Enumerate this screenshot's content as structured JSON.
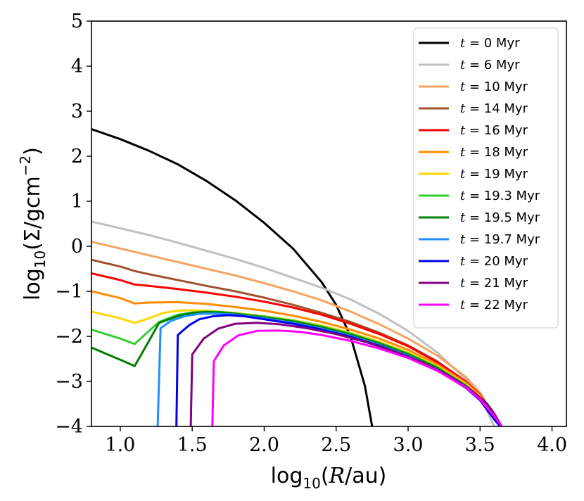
{
  "chart_data": {
    "type": "line",
    "xlabel": "log10(R/au)",
    "ylabel": "log10(Σ/gcm−2)",
    "xlabel_parts": {
      "prefix": "log",
      "sub": "10",
      "open": "(",
      "var": "R",
      "rest": "/au)"
    },
    "ylabel_parts": {
      "prefix": "log",
      "sub": "10",
      "mid": "(Σ/gcm",
      "sup": "−2",
      "close": ")"
    },
    "xlim": [
      0.8,
      4.1
    ],
    "ylim": [
      -4,
      5
    ],
    "xticks": [
      1.0,
      1.5,
      2.0,
      2.5,
      3.0,
      3.5,
      4.0
    ],
    "xtick_labels": [
      "1.0",
      "1.5",
      "2.0",
      "2.5",
      "3.0",
      "3.5",
      "4.0"
    ],
    "yticks": [
      -4,
      -3,
      -2,
      -1,
      0,
      1,
      2,
      3,
      4,
      5
    ],
    "ytick_labels": [
      "−4",
      "−3",
      "−2",
      "−1",
      "0",
      "1",
      "2",
      "3",
      "4",
      "5"
    ],
    "legend_position": "top-right",
    "series": [
      {
        "name": "t = 0 Myr",
        "t_symbol": "t",
        "t_rest": " = 0 Myr",
        "color": "#000000",
        "points": [
          [
            0.8,
            2.6
          ],
          [
            1.0,
            2.38
          ],
          [
            1.2,
            2.12
          ],
          [
            1.4,
            1.82
          ],
          [
            1.6,
            1.45
          ],
          [
            1.8,
            1.02
          ],
          [
            2.0,
            0.52
          ],
          [
            2.2,
            -0.05
          ],
          [
            2.4,
            -0.8
          ],
          [
            2.5,
            -1.3
          ],
          [
            2.6,
            -2.0
          ],
          [
            2.7,
            -3.1
          ],
          [
            2.75,
            -4.0
          ]
        ]
      },
      {
        "name": "t = 6 Myr",
        "t_symbol": "t",
        "t_rest": " = 6 Myr",
        "color": "#c0c0c0",
        "points": [
          [
            0.8,
            0.55
          ],
          [
            1.0,
            0.4
          ],
          [
            1.2,
            0.25
          ],
          [
            1.4,
            0.08
          ],
          [
            1.6,
            -0.1
          ],
          [
            1.8,
            -0.28
          ],
          [
            2.0,
            -0.48
          ],
          [
            2.2,
            -0.7
          ],
          [
            2.4,
            -0.92
          ],
          [
            2.6,
            -1.18
          ],
          [
            2.8,
            -1.5
          ],
          [
            3.0,
            -1.88
          ],
          [
            3.2,
            -2.35
          ],
          [
            3.4,
            -2.95
          ],
          [
            3.5,
            -3.35
          ],
          [
            3.6,
            -4.0
          ]
        ]
      },
      {
        "name": "t = 10 Myr",
        "t_symbol": "t",
        "t_rest": " = 10 Myr",
        "color": "#f4a460",
        "points": [
          [
            0.8,
            0.1
          ],
          [
            1.0,
            -0.05
          ],
          [
            1.2,
            -0.2
          ],
          [
            1.4,
            -0.35
          ],
          [
            1.6,
            -0.5
          ],
          [
            1.8,
            -0.65
          ],
          [
            2.0,
            -0.82
          ],
          [
            2.2,
            -1.0
          ],
          [
            2.4,
            -1.2
          ],
          [
            2.6,
            -1.45
          ],
          [
            2.8,
            -1.73
          ],
          [
            3.0,
            -2.05
          ],
          [
            3.2,
            -2.42
          ],
          [
            3.4,
            -2.9
          ],
          [
            3.5,
            -3.25
          ],
          [
            3.6,
            -3.8
          ],
          [
            3.64,
            -4.0
          ]
        ]
      },
      {
        "name": "t = 14 Myr",
        "t_symbol": "t",
        "t_rest": " = 14 Myr",
        "color": "#a0522d",
        "points": [
          [
            0.8,
            -0.3
          ],
          [
            1.0,
            -0.45
          ],
          [
            1.1,
            -0.55
          ],
          [
            1.2,
            -0.62
          ],
          [
            1.4,
            -0.75
          ],
          [
            1.6,
            -0.88
          ],
          [
            1.8,
            -1.0
          ],
          [
            2.0,
            -1.14
          ],
          [
            2.2,
            -1.3
          ],
          [
            2.4,
            -1.48
          ],
          [
            2.6,
            -1.68
          ],
          [
            2.8,
            -1.92
          ],
          [
            3.0,
            -2.2
          ],
          [
            3.2,
            -2.55
          ],
          [
            3.4,
            -3.0
          ],
          [
            3.5,
            -3.3
          ],
          [
            3.6,
            -3.75
          ],
          [
            3.64,
            -4.0
          ]
        ]
      },
      {
        "name": "t = 16 Myr",
        "t_symbol": "t",
        "t_rest": " = 16 Myr",
        "color": "#ff0000",
        "points": [
          [
            0.8,
            -0.6
          ],
          [
            1.0,
            -0.75
          ],
          [
            1.1,
            -0.85
          ],
          [
            1.2,
            -0.88
          ],
          [
            1.4,
            -0.95
          ],
          [
            1.6,
            -1.03
          ],
          [
            1.8,
            -1.12
          ],
          [
            2.0,
            -1.23
          ],
          [
            2.2,
            -1.36
          ],
          [
            2.4,
            -1.52
          ],
          [
            2.6,
            -1.72
          ],
          [
            2.8,
            -1.95
          ],
          [
            3.0,
            -2.22
          ],
          [
            3.2,
            -2.57
          ],
          [
            3.4,
            -3.0
          ],
          [
            3.5,
            -3.3
          ],
          [
            3.6,
            -3.75
          ],
          [
            3.64,
            -4.0
          ]
        ]
      },
      {
        "name": "t = 18 Myr",
        "t_symbol": "t",
        "t_rest": " = 18 Myr",
        "color": "#ff8c00",
        "points": [
          [
            0.8,
            -1.0
          ],
          [
            1.0,
            -1.15
          ],
          [
            1.1,
            -1.27
          ],
          [
            1.2,
            -1.25
          ],
          [
            1.4,
            -1.24
          ],
          [
            1.6,
            -1.28
          ],
          [
            1.8,
            -1.35
          ],
          [
            2.0,
            -1.43
          ],
          [
            2.2,
            -1.54
          ],
          [
            2.4,
            -1.68
          ],
          [
            2.6,
            -1.85
          ],
          [
            2.8,
            -2.05
          ],
          [
            3.0,
            -2.3
          ],
          [
            3.2,
            -2.62
          ],
          [
            3.4,
            -3.03
          ],
          [
            3.5,
            -3.32
          ],
          [
            3.6,
            -3.77
          ],
          [
            3.64,
            -4.0
          ]
        ]
      },
      {
        "name": "t = 19 Myr",
        "t_symbol": "t",
        "t_rest": " = 19 Myr",
        "color": "#ffd700",
        "points": [
          [
            0.8,
            -1.45
          ],
          [
            1.0,
            -1.6
          ],
          [
            1.1,
            -1.7
          ],
          [
            1.2,
            -1.6
          ],
          [
            1.3,
            -1.48
          ],
          [
            1.4,
            -1.43
          ],
          [
            1.5,
            -1.42
          ],
          [
            1.6,
            -1.43
          ],
          [
            1.8,
            -1.48
          ],
          [
            2.0,
            -1.55
          ],
          [
            2.2,
            -1.64
          ],
          [
            2.4,
            -1.76
          ],
          [
            2.6,
            -1.92
          ],
          [
            2.8,
            -2.12
          ],
          [
            3.0,
            -2.36
          ],
          [
            3.2,
            -2.66
          ],
          [
            3.4,
            -3.06
          ],
          [
            3.5,
            -3.34
          ],
          [
            3.6,
            -3.78
          ],
          [
            3.64,
            -4.0
          ]
        ]
      },
      {
        "name": "t = 19.3 Myr",
        "t_symbol": "t",
        "t_rest": " = 19.3 Myr",
        "color": "#32cd32",
        "points": [
          [
            0.8,
            -1.85
          ],
          [
            1.0,
            -2.05
          ],
          [
            1.1,
            -2.17
          ],
          [
            1.2,
            -1.88
          ],
          [
            1.27,
            -1.68
          ],
          [
            1.4,
            -1.52
          ],
          [
            1.5,
            -1.47
          ],
          [
            1.6,
            -1.45
          ],
          [
            1.7,
            -1.46
          ],
          [
            1.8,
            -1.49
          ],
          [
            2.0,
            -1.56
          ],
          [
            2.2,
            -1.65
          ],
          [
            2.4,
            -1.78
          ],
          [
            2.6,
            -1.94
          ],
          [
            2.8,
            -2.14
          ],
          [
            3.0,
            -2.38
          ],
          [
            3.2,
            -2.68
          ],
          [
            3.4,
            -3.08
          ],
          [
            3.5,
            -3.36
          ],
          [
            3.6,
            -3.8
          ],
          [
            3.64,
            -4.0
          ]
        ]
      },
      {
        "name": "t = 19.5 Myr",
        "t_symbol": "t",
        "t_rest": " = 19.5 Myr",
        "color": "#008000",
        "points": [
          [
            0.8,
            -2.25
          ],
          [
            1.0,
            -2.52
          ],
          [
            1.1,
            -2.66
          ],
          [
            1.2,
            -2.1
          ],
          [
            1.27,
            -1.7
          ],
          [
            1.4,
            -1.55
          ],
          [
            1.5,
            -1.48
          ],
          [
            1.6,
            -1.46
          ],
          [
            1.7,
            -1.47
          ],
          [
            1.8,
            -1.5
          ],
          [
            2.0,
            -1.58
          ],
          [
            2.2,
            -1.67
          ],
          [
            2.4,
            -1.8
          ],
          [
            2.6,
            -1.96
          ],
          [
            2.8,
            -2.16
          ],
          [
            3.0,
            -2.4
          ],
          [
            3.2,
            -2.7
          ],
          [
            3.4,
            -3.1
          ],
          [
            3.5,
            -3.38
          ],
          [
            3.6,
            -3.82
          ],
          [
            3.64,
            -4.0
          ]
        ]
      },
      {
        "name": "t = 19.7 Myr",
        "t_symbol": "t",
        "t_rest": " = 19.7 Myr",
        "color": "#1e90ff",
        "points": [
          [
            1.26,
            -4.0
          ],
          [
            1.28,
            -1.82
          ],
          [
            1.35,
            -1.66
          ],
          [
            1.45,
            -1.55
          ],
          [
            1.55,
            -1.5
          ],
          [
            1.65,
            -1.49
          ],
          [
            1.8,
            -1.52
          ],
          [
            2.0,
            -1.6
          ],
          [
            2.2,
            -1.7
          ],
          [
            2.4,
            -1.83
          ],
          [
            2.6,
            -1.99
          ],
          [
            2.8,
            -2.19
          ],
          [
            3.0,
            -2.43
          ],
          [
            3.2,
            -2.73
          ],
          [
            3.4,
            -3.12
          ],
          [
            3.5,
            -3.4
          ],
          [
            3.6,
            -3.83
          ],
          [
            3.64,
            -4.0
          ]
        ]
      },
      {
        "name": "t = 20 Myr",
        "t_symbol": "t",
        "t_rest": " = 20 Myr",
        "color": "#0000ee",
        "points": [
          [
            1.39,
            -4.0
          ],
          [
            1.4,
            -1.97
          ],
          [
            1.48,
            -1.75
          ],
          [
            1.55,
            -1.62
          ],
          [
            1.65,
            -1.55
          ],
          [
            1.75,
            -1.53
          ],
          [
            1.85,
            -1.55
          ],
          [
            2.0,
            -1.62
          ],
          [
            2.2,
            -1.72
          ],
          [
            2.4,
            -1.85
          ],
          [
            2.6,
            -2.01
          ],
          [
            2.8,
            -2.21
          ],
          [
            3.0,
            -2.45
          ],
          [
            3.2,
            -2.75
          ],
          [
            3.4,
            -3.14
          ],
          [
            3.5,
            -3.42
          ],
          [
            3.6,
            -3.85
          ],
          [
            3.64,
            -4.0
          ]
        ]
      },
      {
        "name": "t = 21 Myr",
        "t_symbol": "t",
        "t_rest": " = 21 Myr",
        "color": "#800080",
        "points": [
          [
            1.49,
            -4.0
          ],
          [
            1.5,
            -2.4
          ],
          [
            1.58,
            -2.05
          ],
          [
            1.68,
            -1.83
          ],
          [
            1.8,
            -1.72
          ],
          [
            1.95,
            -1.7
          ],
          [
            2.1,
            -1.73
          ],
          [
            2.3,
            -1.82
          ],
          [
            2.5,
            -1.95
          ],
          [
            2.7,
            -2.12
          ],
          [
            2.9,
            -2.33
          ],
          [
            3.1,
            -2.58
          ],
          [
            3.3,
            -2.9
          ],
          [
            3.45,
            -3.22
          ],
          [
            3.55,
            -3.5
          ],
          [
            3.6,
            -3.72
          ],
          [
            3.65,
            -4.0
          ]
        ]
      },
      {
        "name": "t = 22 Myr",
        "t_symbol": "t",
        "t_rest": " = 22 Myr",
        "color": "#ff00ff",
        "points": [
          [
            1.64,
            -4.0
          ],
          [
            1.65,
            -2.55
          ],
          [
            1.72,
            -2.2
          ],
          [
            1.82,
            -1.98
          ],
          [
            1.95,
            -1.88
          ],
          [
            2.1,
            -1.87
          ],
          [
            2.25,
            -1.9
          ],
          [
            2.4,
            -1.97
          ],
          [
            2.6,
            -2.1
          ],
          [
            2.8,
            -2.27
          ],
          [
            3.0,
            -2.48
          ],
          [
            3.2,
            -2.76
          ],
          [
            3.4,
            -3.13
          ],
          [
            3.5,
            -3.4
          ],
          [
            3.6,
            -3.78
          ],
          [
            3.65,
            -4.0
          ]
        ]
      }
    ]
  }
}
